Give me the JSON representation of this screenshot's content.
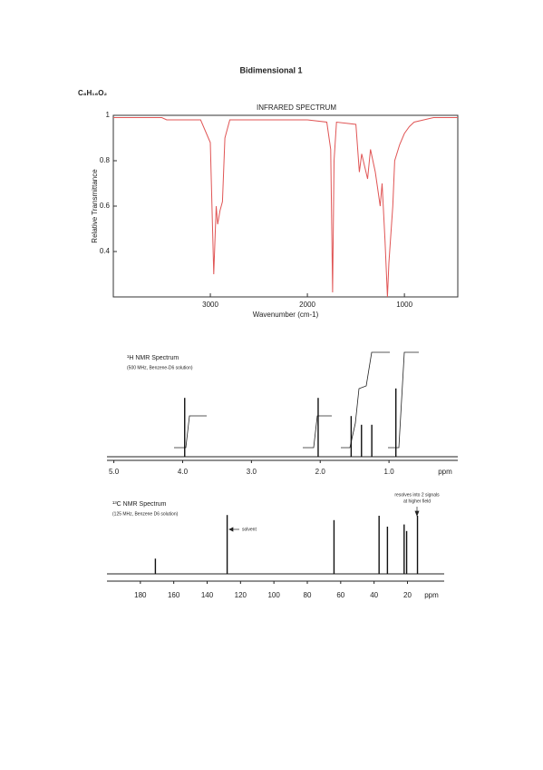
{
  "header": {
    "title": "Bidimensional 1",
    "formula": "C₈H₁₆O₂"
  },
  "chart_data": [
    {
      "type": "line",
      "title": "INFRARED SPECTRUM",
      "x_label": "Wavenumber (cm-1)",
      "y_label": "Relative Transmittance",
      "color": "#e05555",
      "x": [
        4000,
        3500,
        3450,
        3100,
        3000,
        2965,
        2940,
        2925,
        2900,
        2875,
        2850,
        2800,
        2000,
        1800,
        1760,
        1740,
        1725,
        1700,
        1500,
        1465,
        1440,
        1380,
        1350,
        1300,
        1250,
        1230,
        1200,
        1175,
        1160,
        1120,
        1100,
        1050,
        1000,
        950,
        900,
        800,
        700,
        600,
        450
      ],
      "values": [
        0.99,
        0.99,
        0.98,
        0.98,
        0.88,
        0.3,
        0.6,
        0.52,
        0.58,
        0.62,
        0.9,
        0.98,
        0.98,
        0.97,
        0.85,
        0.22,
        0.8,
        0.97,
        0.96,
        0.75,
        0.83,
        0.72,
        0.85,
        0.75,
        0.6,
        0.7,
        0.45,
        0.2,
        0.35,
        0.6,
        0.8,
        0.87,
        0.92,
        0.95,
        0.97,
        0.98,
        0.99,
        0.99,
        0.99
      ],
      "xlim": [
        4000,
        450
      ],
      "ylim": [
        0.2,
        1
      ],
      "xticks": [
        3000,
        2000,
        1000
      ],
      "yticks": [
        1,
        0.8,
        0.6,
        0.4
      ]
    },
    {
      "type": "stem",
      "title": "¹H NMR Spectrum",
      "subtitle": "(500 MHz, Benzene-D6 solution)",
      "x_unit": "ppm",
      "x": [
        3.97,
        2.03,
        1.55,
        1.4,
        1.25,
        0.9
      ],
      "values": [
        81,
        81,
        56,
        44,
        44,
        94
      ],
      "xlim": [
        5.1,
        0
      ],
      "xticks": [
        {
          "value": 5,
          "label": "5.0"
        },
        {
          "value": 4,
          "label": "4.0"
        },
        {
          "value": 3,
          "label": "3.0"
        },
        {
          "value": 2,
          "label": "2.0"
        },
        {
          "value": 1,
          "label": "1.0"
        }
      ]
    },
    {
      "type": "stem",
      "title": "¹³C NMR Spectrum",
      "subtitle": "(125 MHz, Benzene D6 solution)",
      "x_unit": "ppm",
      "x": [
        171,
        128,
        64,
        37,
        32,
        22,
        20.5,
        14
      ],
      "values": [
        21,
        81,
        74,
        80,
        65,
        68,
        59,
        80
      ],
      "xlim": [
        200,
        -2
      ],
      "xticks": [
        180,
        160,
        140,
        120,
        100,
        80,
        60,
        40,
        20
      ],
      "annotations": [
        "solvent",
        "resolves into 2 signals",
        "at higher field"
      ]
    }
  ]
}
